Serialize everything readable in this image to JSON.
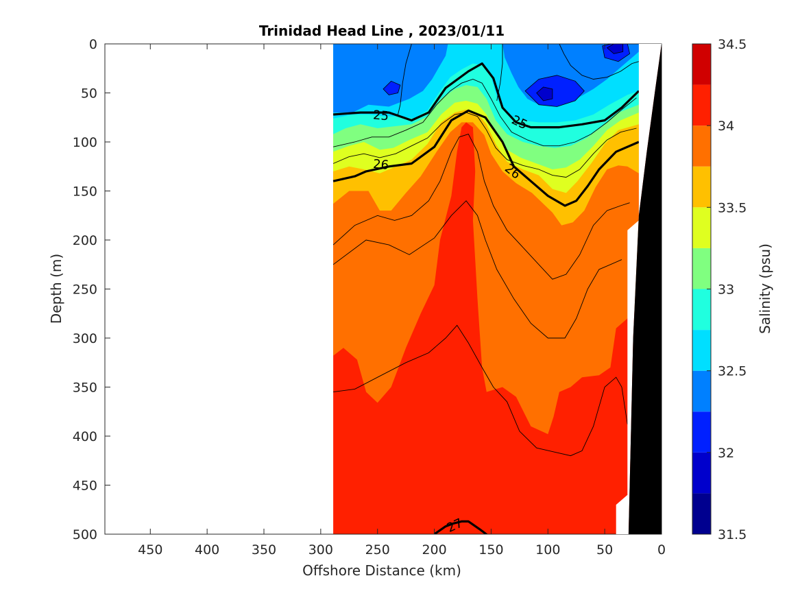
{
  "chart_data": {
    "type": "heatmap",
    "title": "Trinidad Head Line , 2023/01/11",
    "xlabel": "Offshore Distance (km)",
    "ylabel": "Depth (m)",
    "xlim": [
      490,
      0
    ],
    "ylim": [
      0,
      500
    ],
    "x_reversed": true,
    "y_reversed": true,
    "x_ticks": [
      450,
      400,
      350,
      300,
      250,
      200,
      150,
      100,
      50,
      0
    ],
    "y_ticks": [
      0,
      50,
      100,
      150,
      200,
      250,
      300,
      350,
      400,
      450,
      500
    ],
    "data_extent_km": [
      289,
      20
    ],
    "colorbar": {
      "label": "Salinity (psu)",
      "range": [
        31.5,
        34.5
      ],
      "ticks": [
        31.5,
        32,
        32.5,
        33,
        33.5,
        34,
        34.5
      ],
      "levels": [
        {
          "from": 31.5,
          "to": 31.75,
          "color": "#00008f"
        },
        {
          "from": 31.75,
          "to": 32.0,
          "color": "#0000cc"
        },
        {
          "from": 32.0,
          "to": 32.25,
          "color": "#0020ff"
        },
        {
          "from": 32.25,
          "to": 32.5,
          "color": "#0080ff"
        },
        {
          "from": 32.5,
          "to": 32.75,
          "color": "#00dfff"
        },
        {
          "from": 32.75,
          "to": 33.0,
          "color": "#20ffdf"
        },
        {
          "from": 33.0,
          "to": 33.25,
          "color": "#80ff80"
        },
        {
          "from": 33.25,
          "to": 33.5,
          "color": "#dfff20"
        },
        {
          "from": 33.5,
          "to": 33.75,
          "color": "#ffc000"
        },
        {
          "from": 33.75,
          "to": 34.0,
          "color": "#ff7000"
        },
        {
          "from": 34.0,
          "to": 34.25,
          "color": "#ff2000"
        },
        {
          "from": 34.25,
          "to": 34.5,
          "color": "#d00000"
        }
      ]
    },
    "density_contours": [
      {
        "value": 25,
        "label": "25",
        "points": [
          [
            289,
            72
          ],
          [
            265,
            70
          ],
          [
            240,
            70
          ],
          [
            220,
            78
          ],
          [
            205,
            70
          ],
          [
            190,
            45
          ],
          [
            170,
            28
          ],
          [
            158,
            20
          ],
          [
            148,
            35
          ],
          [
            140,
            65
          ],
          [
            128,
            80
          ],
          [
            115,
            85
          ],
          [
            90,
            85
          ],
          [
            70,
            82
          ],
          [
            50,
            78
          ],
          [
            35,
            65
          ],
          [
            20,
            48
          ]
        ]
      },
      {
        "value": 26,
        "label": "26",
        "points": [
          [
            289,
            140
          ],
          [
            270,
            135
          ],
          [
            260,
            130
          ],
          [
            240,
            125
          ],
          [
            220,
            122
          ],
          [
            200,
            105
          ],
          [
            185,
            78
          ],
          [
            170,
            68
          ],
          [
            155,
            75
          ],
          [
            140,
            100
          ],
          [
            130,
            125
          ],
          [
            115,
            140
          ],
          [
            100,
            155
          ],
          [
            85,
            165
          ],
          [
            75,
            160
          ],
          [
            65,
            145
          ],
          [
            55,
            128
          ],
          [
            40,
            110
          ],
          [
            20,
            100
          ]
        ]
      },
      {
        "value": 27,
        "label": "27",
        "points": [
          [
            200,
            500
          ],
          [
            190,
            492
          ],
          [
            183,
            489
          ],
          [
            176,
            487
          ],
          [
            170,
            487
          ],
          [
            160,
            495
          ],
          [
            152,
            502
          ]
        ]
      }
    ],
    "contour_labels": [
      {
        "text": "25",
        "at": [
          247,
          73
        ],
        "angle": 5
      },
      {
        "text": "25",
        "at": [
          125,
          80
        ],
        "angle": 25
      },
      {
        "text": "26",
        "at": [
          247,
          123
        ],
        "angle": 5
      },
      {
        "text": "26",
        "at": [
          131,
          130
        ],
        "angle": 38
      },
      {
        "text": "27",
        "at": [
          182,
          491
        ],
        "angle": -25
      }
    ],
    "grid": false,
    "legend": "colorbar-right"
  }
}
